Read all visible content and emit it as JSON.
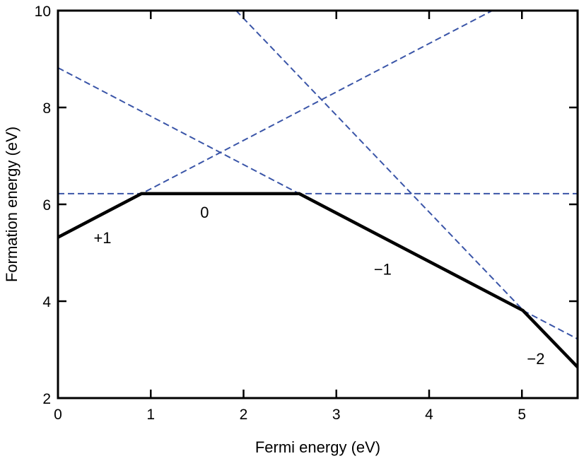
{
  "chart_data": {
    "type": "line",
    "title": "",
    "xlabel": "Fermi energy (eV)",
    "ylabel": "Formation energy (eV)",
    "xlim": [
      0,
      5.6
    ],
    "ylim": [
      2,
      10
    ],
    "xticks": [
      0,
      1,
      2,
      3,
      4,
      5
    ],
    "yticks": [
      2,
      4,
      6,
      8,
      10
    ],
    "xtick_labels": [
      "0",
      "1",
      "2",
      "3",
      "4",
      "5"
    ],
    "ytick_labels": [
      "2",
      "4",
      "6",
      "8",
      "10"
    ],
    "grid": false,
    "dashed_color": "#3a55a8",
    "hull_color": "#000000",
    "series": [
      {
        "name": "+1",
        "style": "dashed",
        "slope": 1,
        "intercept": 5.32
      },
      {
        "name": "0",
        "style": "dashed",
        "slope": 0,
        "intercept": 6.22
      },
      {
        "name": "-1",
        "style": "dashed",
        "slope": -1,
        "intercept": 8.82
      },
      {
        "name": "-2",
        "style": "dashed",
        "slope": -2,
        "intercept": 13.84
      }
    ],
    "hull": {
      "x": [
        0,
        0.9,
        2.6,
        5.01,
        5.6
      ],
      "y": [
        5.32,
        6.22,
        6.22,
        3.81,
        2.64
      ]
    },
    "annotations": [
      {
        "text": "+1",
        "x": 0.48,
        "y": 5.2
      },
      {
        "text": "0",
        "x": 1.58,
        "y": 5.72
      },
      {
        "text": "−1",
        "x": 3.5,
        "y": 4.55
      },
      {
        "text": "−2",
        "x": 5.15,
        "y": 2.7
      }
    ]
  }
}
